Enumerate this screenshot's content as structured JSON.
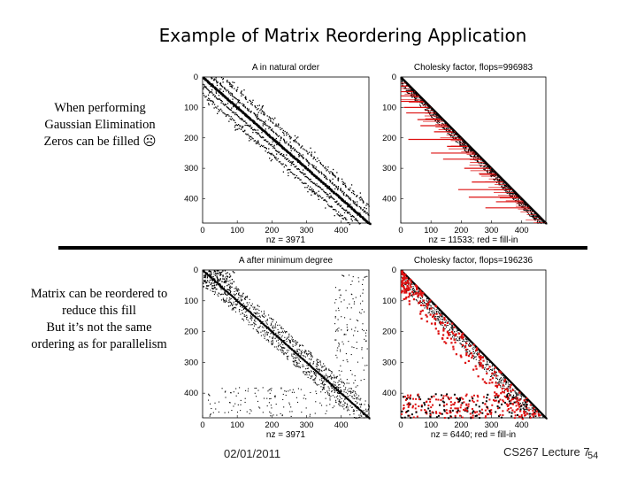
{
  "slide": {
    "title": "Example of Matrix Reordering Application",
    "note_top": [
      "When performing",
      "Gaussian Elimination",
      "Zeros can be filled ☹"
    ],
    "note_bottom": [
      "Matrix can be reordered to",
      "reduce this fill",
      "But it’s not the same",
      "ordering as for parallelism"
    ],
    "date": "02/01/2011",
    "course": "CS267 Lecture 7",
    "page_number": "54"
  },
  "plots": [
    {
      "title": "A in natural order",
      "xlabel": "nz = 3971",
      "yticks": [
        "0",
        "100",
        "200",
        "300",
        "400"
      ],
      "xticks": [
        "0",
        "100",
        "200",
        "300",
        "400"
      ]
    },
    {
      "title": "Cholesky factor, flops=996983",
      "xlabel": "nz = 11533;   red = fill-in",
      "yticks": [
        "0",
        "100",
        "200",
        "300",
        "400"
      ],
      "xticks": [
        "0",
        "100",
        "200",
        "300",
        "400"
      ]
    },
    {
      "title": "A after minimum degree",
      "xlabel": "nz = 3971",
      "yticks": [
        "0",
        "100",
        "200",
        "300",
        "400"
      ],
      "xticks": [
        "0",
        "100",
        "200",
        "300",
        "400"
      ]
    },
    {
      "title": "Cholesky factor, flops=196236",
      "xlabel": "nz = 6440;   red = fill-in",
      "yticks": [
        "0",
        "100",
        "200",
        "300",
        "400"
      ],
      "xticks": [
        "0",
        "100",
        "200",
        "300",
        "400"
      ]
    }
  ],
  "colors": {
    "fill_in": "#dd1111",
    "nonzero": "#000000"
  }
}
